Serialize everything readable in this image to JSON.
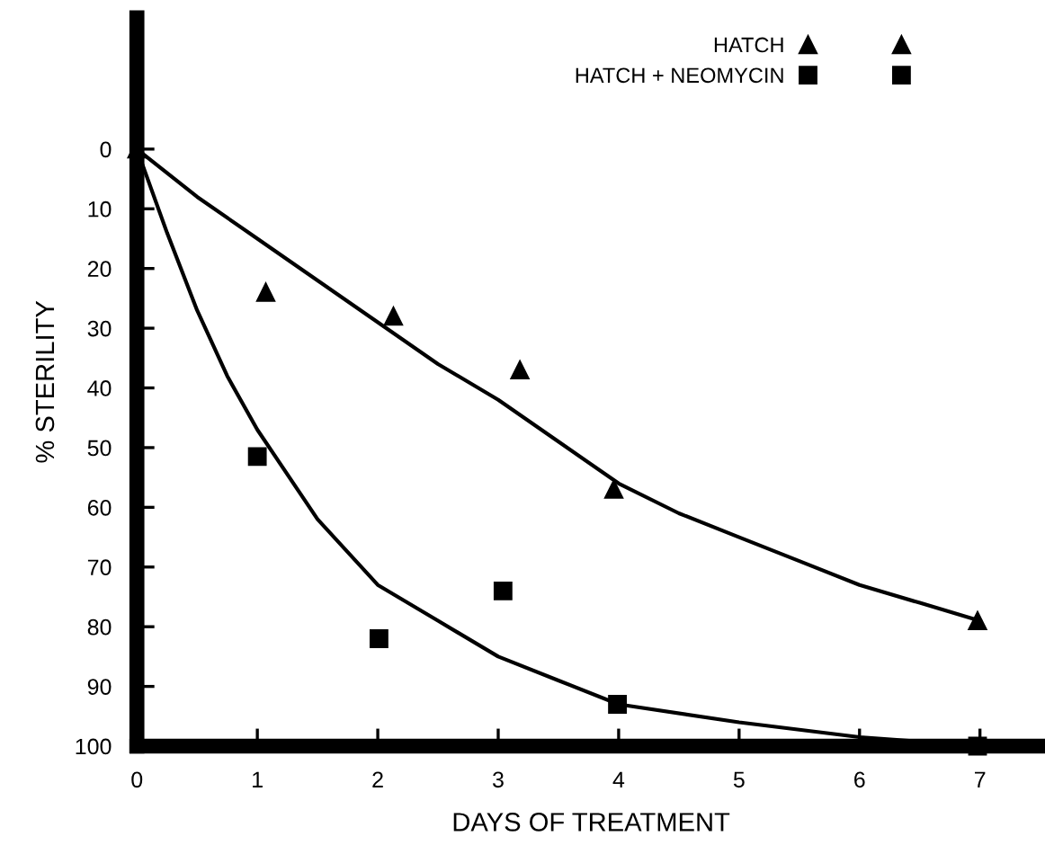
{
  "chart_data": {
    "type": "scatter",
    "xlabel": "DAYS OF TREATMENT",
    "ylabel": "% STERILITY",
    "xlim": [
      0,
      7.54
    ],
    "xticks": [
      0,
      1,
      2,
      3,
      4,
      5,
      6,
      7
    ],
    "ylim": [
      100,
      -22
    ],
    "yticks": [
      0,
      10,
      20,
      30,
      40,
      50,
      60,
      70,
      80,
      90,
      100
    ],
    "grid": false,
    "legend": "top right",
    "series": [
      {
        "name": "HATCH",
        "marker": "triangle",
        "color": "#000000",
        "x": [
          0,
          1.07,
          2.13,
          3.18,
          3.96,
          6.98
        ],
        "values": [
          0,
          24,
          28,
          37,
          57,
          79
        ]
      },
      {
        "name": "HATCH + NEOMYCIN",
        "marker": "square",
        "color": "#000000",
        "x": [
          1.0,
          2.01,
          3.04,
          3.99,
          6.98
        ],
        "values": [
          51.5,
          82,
          74,
          93,
          100
        ]
      },
      {
        "type": "line",
        "marker": "none",
        "color": "#000000",
        "x": [
          0,
          0.5,
          1,
          1.5,
          2,
          2.5,
          3,
          3.5,
          4,
          4.5,
          5,
          5.5,
          6,
          6.5,
          7
        ],
        "values": [
          0,
          8,
          15,
          22,
          29,
          36,
          42,
          49,
          56,
          61,
          65,
          69,
          73,
          76,
          79
        ]
      },
      {
        "type": "line",
        "marker": "none",
        "color": "#000000",
        "x": [
          0,
          0.25,
          0.5,
          0.75,
          1,
          1.5,
          2,
          2.5,
          3,
          3.5,
          4,
          5,
          6,
          7
        ],
        "values": [
          0,
          14,
          27,
          38,
          47,
          62,
          73,
          79,
          85,
          89,
          93,
          96,
          98.5,
          100
        ]
      }
    ]
  }
}
